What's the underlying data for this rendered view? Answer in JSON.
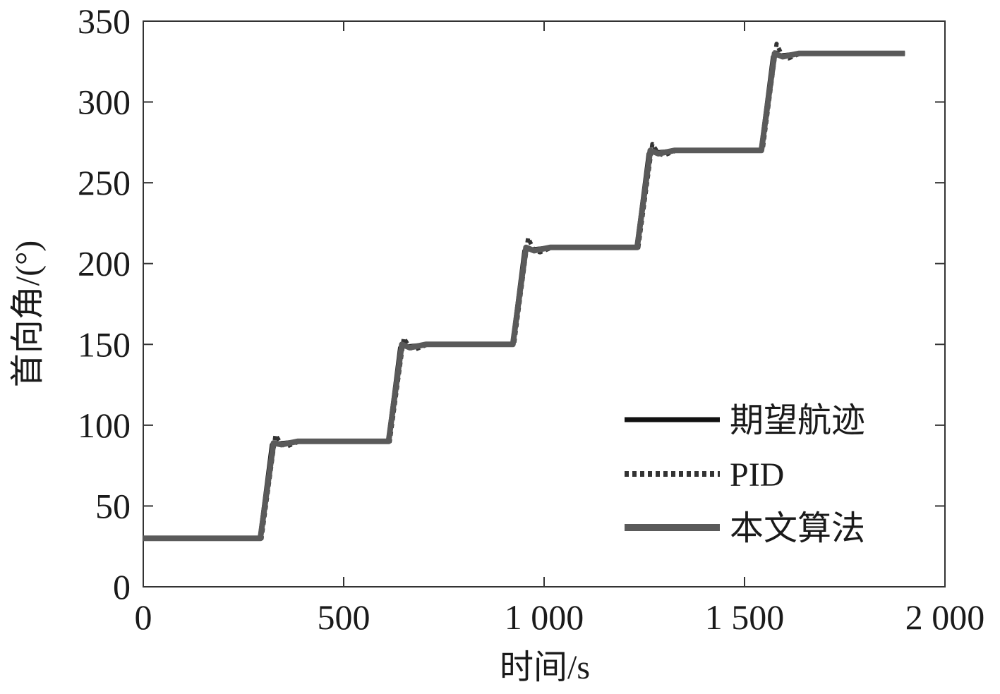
{
  "chart_data": {
    "type": "line",
    "title": "",
    "xlabel": "时间/s",
    "ylabel": "首向角/(°)",
    "xlim": [
      0,
      2000
    ],
    "ylim": [
      0,
      350
    ],
    "x_ticks": [
      0,
      500,
      1000,
      1500,
      2000
    ],
    "x_tick_labels": [
      "0",
      "500",
      "1 000",
      "1 500",
      "2 000"
    ],
    "y_ticks": [
      0,
      50,
      100,
      150,
      200,
      250,
      300,
      350
    ],
    "y_tick_labels": [
      "0",
      "50",
      "100",
      "150",
      "200",
      "250",
      "300",
      "350"
    ],
    "grid": false,
    "legend_position": "bottom-right",
    "series": [
      {
        "name": "期望航迹",
        "style": "solid",
        "color": "#111111",
        "x": [
          0,
          290,
          320,
          340,
          380,
          610,
          640,
          660,
          700,
          920,
          950,
          970,
          1010,
          1230,
          1260,
          1280,
          1320,
          1540,
          1570,
          1590,
          1630,
          1900
        ],
        "y": [
          30,
          30,
          88,
          89,
          90,
          90,
          148,
          149,
          150,
          150,
          208,
          209,
          210,
          210,
          268,
          269,
          270,
          270,
          328,
          329,
          330,
          330
        ]
      },
      {
        "name": "PID",
        "style": "dotted",
        "color": "#333333",
        "x": [
          0,
          295,
          330,
          345,
          360,
          390,
          615,
          650,
          665,
          680,
          710,
          925,
          960,
          975,
          990,
          1020,
          1235,
          1270,
          1285,
          1300,
          1330,
          1545,
          1580,
          1595,
          1610,
          1640,
          1900
        ],
        "y": [
          30,
          30,
          94,
          88,
          87,
          90,
          90,
          154,
          148,
          147,
          150,
          150,
          216,
          208,
          207,
          210,
          210,
          274,
          268,
          267,
          270,
          270,
          336,
          328,
          327,
          330,
          330
        ]
      },
      {
        "name": "本文算法",
        "style": "solid-thick",
        "color": "#5a5a5a",
        "x": [
          0,
          292,
          325,
          345,
          385,
          612,
          645,
          665,
          705,
          922,
          955,
          975,
          1015,
          1232,
          1265,
          1285,
          1325,
          1542,
          1575,
          1595,
          1635,
          1900
        ],
        "y": [
          30,
          30,
          89,
          88,
          90,
          90,
          150,
          148,
          150,
          150,
          210,
          208,
          210,
          210,
          270,
          268,
          270,
          270,
          330,
          328,
          330,
          330
        ]
      }
    ]
  }
}
